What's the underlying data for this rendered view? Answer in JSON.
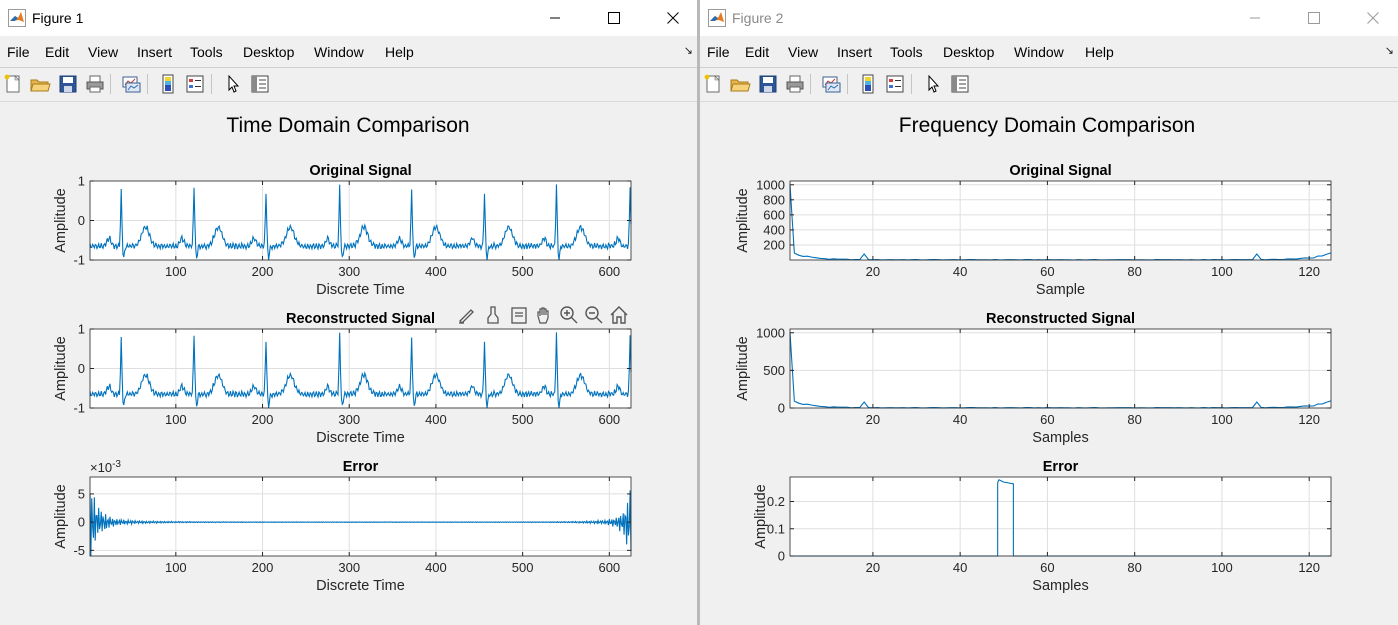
{
  "windows": [
    {
      "title": "Figure 1",
      "menu": [
        "File",
        "Edit",
        "View",
        "Insert",
        "Tools",
        "Desktop",
        "Window",
        "Help"
      ],
      "figure_title": "Time Domain Comparison"
    },
    {
      "title": "Figure 2",
      "menu": [
        "File",
        "Edit",
        "View",
        "Insert",
        "Tools",
        "Desktop",
        "Window",
        "Help"
      ],
      "figure_title": "Frequency Domain Comparison"
    }
  ],
  "colors": {
    "line": "#0072bd",
    "grid": "#dfdfdf",
    "axis": "#262626",
    "background": "#f0f0f0"
  },
  "toolbar_icons": [
    "new-figure-icon",
    "open-icon",
    "save-icon",
    "print-icon",
    "link-plot-icon",
    "colorbar-icon",
    "legend-icon",
    "pointer-icon",
    "property-inspector-icon"
  ],
  "axes_toolbar_icons": [
    "export-icon",
    "brush-icon",
    "data-tips-icon",
    "pan-icon",
    "zoom-in-icon",
    "zoom-out-icon",
    "home-icon"
  ],
  "chart_data": [
    {
      "type": "line",
      "title": "Original Signal",
      "xlabel": "Discrete Time",
      "ylabel": "Amplitude",
      "xlim": [
        1,
        625
      ],
      "ylim": [
        -1,
        1
      ],
      "xticks": [
        100,
        200,
        300,
        400,
        500,
        600
      ],
      "yticks": [
        -1,
        0,
        1
      ],
      "series": [
        {
          "kind": "ecg",
          "n": 625,
          "r_peaks": [
            37,
            121,
            204,
            289,
            372,
            456,
            539,
            624
          ],
          "r_amp": [
            0.72,
            0.88,
            0.75,
            0.88,
            0.78,
            0.72,
            0.9,
            0.88
          ],
          "baseline": -0.65
        }
      ]
    },
    {
      "type": "line",
      "title": "Reconstructed Signal",
      "xlabel": "Discrete Time",
      "ylabel": "Amplitude",
      "xlim": [
        1,
        625
      ],
      "ylim": [
        -1,
        1
      ],
      "xticks": [
        100,
        200,
        300,
        400,
        500,
        600
      ],
      "yticks": [
        -1,
        0,
        1
      ],
      "series": [
        {
          "kind": "ecg",
          "n": 625,
          "r_peaks": [
            37,
            121,
            204,
            289,
            372,
            456,
            539,
            624
          ],
          "r_amp": [
            0.72,
            0.88,
            0.75,
            0.88,
            0.78,
            0.72,
            0.9,
            0.88
          ],
          "baseline": -0.65
        }
      ]
    },
    {
      "type": "line",
      "title": "Error",
      "xlabel": "Discrete Time",
      "ylabel": "Amplitude",
      "xlim": [
        1,
        625
      ],
      "ylim": [
        -6,
        8
      ],
      "exponent": "×10",
      "exponent_power": "-3",
      "xticks": [
        100,
        200,
        300,
        400,
        500,
        600
      ],
      "yticks": [
        -5,
        0,
        5
      ],
      "series": [
        {
          "kind": "error",
          "n": 625,
          "peak": 7.5
        }
      ]
    },
    {
      "type": "line",
      "title": "Original Signal",
      "xlabel": "Sample",
      "ylabel": "Amplitude",
      "xlim": [
        1,
        125
      ],
      "ylim": [
        0,
        1050
      ],
      "xticks": [
        20,
        40,
        60,
        80,
        100,
        120
      ],
      "yticks": [
        200,
        400,
        600,
        800,
        1000
      ],
      "series": [
        {
          "kind": "spectrum",
          "n": 125,
          "dc": 1000,
          "spike_at": [
            18,
            108
          ],
          "spike_amp": 80
        }
      ]
    },
    {
      "type": "line",
      "title": "Reconstructed Signal",
      "xlabel": "Samples",
      "ylabel": "Amplitude",
      "xlim": [
        1,
        125
      ],
      "ylim": [
        0,
        1050
      ],
      "xticks": [
        20,
        40,
        60,
        80,
        100,
        120
      ],
      "yticks": [
        0,
        500,
        1000
      ],
      "series": [
        {
          "kind": "spectrum",
          "n": 125,
          "dc": 1000,
          "spike_at": [
            18,
            108
          ],
          "spike_amp": 80
        }
      ]
    },
    {
      "type": "line",
      "title": "Error",
      "xlabel": "Samples",
      "ylabel": "Amplitude",
      "xlim": [
        1,
        125
      ],
      "ylim": [
        0,
        0.29
      ],
      "xticks": [
        20,
        40,
        60,
        80,
        100,
        120
      ],
      "yticks": [
        0,
        0.1,
        0.2
      ],
      "series": [
        {
          "kind": "step",
          "from": 48.6,
          "to": 52.2,
          "start_amp": 0.28,
          "end_amp": 0.265
        }
      ]
    }
  ]
}
